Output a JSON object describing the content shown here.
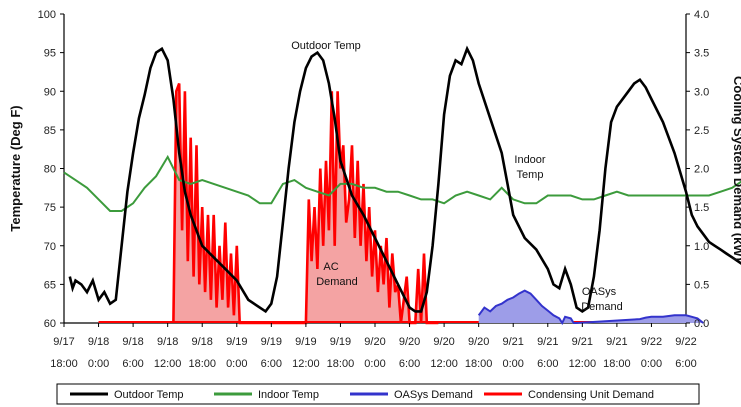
{
  "chart_data": {
    "type": "line",
    "ylabel_left": "Temperature (Deg F)",
    "ylabel_right": "Cooling System Demand (kW)",
    "ylim_left": [
      60,
      100
    ],
    "ylim_right": [
      0,
      4.0
    ],
    "y_ticks_left": [
      "60",
      "65",
      "70",
      "75",
      "80",
      "85",
      "90",
      "95",
      "100"
    ],
    "y_ticks_right": [
      "0.0",
      "0.5",
      "1.0",
      "1.5",
      "2.0",
      "2.5",
      "3.0",
      "3.5",
      "4.0"
    ],
    "x_ticks": [
      {
        "date": "9/17",
        "time": "18:00"
      },
      {
        "date": "9/18",
        "time": "0:00"
      },
      {
        "date": "9/18",
        "time": "6:00"
      },
      {
        "date": "9/18",
        "time": "12:00"
      },
      {
        "date": "9/18",
        "time": "18:00"
      },
      {
        "date": "9/19",
        "time": "0:00"
      },
      {
        "date": "9/19",
        "time": "6:00"
      },
      {
        "date": "9/19",
        "time": "12:00"
      },
      {
        "date": "9/19",
        "time": "18:00"
      },
      {
        "date": "9/20",
        "time": "0:00"
      },
      {
        "date": "9/20",
        "time": "6:00"
      },
      {
        "date": "9/20",
        "time": "12:00"
      },
      {
        "date": "9/20",
        "time": "18:00"
      },
      {
        "date": "9/21",
        "time": "0:00"
      },
      {
        "date": "9/21",
        "time": "6:00"
      },
      {
        "date": "9/21",
        "time": "12:00"
      },
      {
        "date": "9/21",
        "time": "18:00"
      },
      {
        "date": "9/22",
        "time": "0:00"
      },
      {
        "date": "9/22",
        "time": "6:00"
      }
    ],
    "grid": false,
    "legend_position": "bottom",
    "annotations": [
      "Outdoor Temp",
      "Indoor Temp",
      "AC Demand",
      "OASys Demand"
    ],
    "series": [
      {
        "name": "Outdoor Temp",
        "axis": "left",
        "color": "#000000",
        "x_hours": [
          1,
          1.5,
          2,
          3,
          4,
          5,
          6,
          7,
          8,
          9,
          10,
          11,
          12,
          13,
          14,
          15,
          16,
          17,
          18,
          19,
          20,
          21,
          22,
          24,
          26,
          28,
          30,
          32,
          34,
          35,
          36,
          37,
          38,
          39,
          40,
          41,
          42,
          43,
          44,
          45,
          46,
          47,
          48,
          50,
          52,
          54,
          56,
          58,
          60,
          61,
          62,
          63,
          64,
          65,
          66,
          67,
          68,
          69,
          70,
          71,
          72,
          74,
          76,
          77,
          78,
          80,
          82,
          84,
          85,
          86,
          87,
          88,
          89,
          90,
          91,
          92,
          93,
          94,
          95,
          96,
          98,
          99,
          100,
          101,
          102,
          104,
          106,
          108,
          109,
          110,
          111,
          112,
          113,
          114,
          115,
          116,
          117,
          118,
          119,
          120,
          121,
          122,
          123
        ],
        "values": [
          66,
          64.5,
          65.5,
          65,
          64,
          65.5,
          63,
          64,
          62.5,
          63,
          70,
          77,
          82,
          86.5,
          89.5,
          93,
          95,
          95.5,
          94,
          89,
          82,
          77,
          74,
          70,
          68.5,
          67,
          65.5,
          63,
          62,
          61.5,
          62.5,
          66,
          73,
          80,
          86,
          90,
          93,
          94.5,
          95,
          94,
          91,
          86.5,
          81,
          76.5,
          74,
          71,
          68,
          65,
          62,
          61.5,
          61.5,
          64,
          70,
          78,
          87,
          92,
          94,
          93.5,
          95.5,
          94,
          91,
          86.5,
          82,
          78,
          74,
          71,
          69.5,
          67,
          65,
          64.5,
          67,
          65,
          62,
          61.5,
          62,
          66,
          72,
          80,
          86,
          88,
          90,
          91,
          91.5,
          90.5,
          89,
          86,
          82,
          77,
          74,
          72.5,
          71.5,
          70.5,
          70,
          69.5,
          69,
          68.5,
          68,
          67.5,
          67,
          67,
          71.5,
          71.5,
          71
        ]
      },
      {
        "name": "Indoor Temp",
        "axis": "left",
        "color": "#3c9b3c",
        "x_hours": [
          0,
          2,
          4,
          6,
          8,
          10,
          12,
          14,
          16,
          18,
          20,
          22,
          24,
          26,
          28,
          30,
          32,
          34,
          36,
          38,
          40,
          42,
          44,
          46,
          48,
          50,
          52,
          54,
          56,
          58,
          60,
          62,
          64,
          66,
          68,
          70,
          72,
          74,
          76,
          78,
          80,
          82,
          84,
          86,
          88,
          90,
          92,
          94,
          96,
          98,
          100,
          102,
          104,
          106,
          108,
          110,
          112,
          114,
          116,
          118,
          120,
          122,
          124
        ],
        "values": [
          79.5,
          78.5,
          77.5,
          76,
          74.5,
          74.5,
          75.5,
          77.5,
          79,
          81.5,
          78.5,
          78,
          78.5,
          78,
          77.5,
          77,
          76.5,
          75.5,
          75.5,
          78,
          78.5,
          77.5,
          77,
          76.5,
          78,
          78,
          77.5,
          77.5,
          77,
          77,
          76.5,
          76,
          76,
          75.5,
          76.5,
          77,
          76.5,
          76,
          77.5,
          76,
          75.5,
          75.5,
          76.5,
          76.5,
          76.5,
          76,
          76,
          76.5,
          77,
          76.5,
          76.5,
          76.5,
          76.5,
          76.5,
          76.5,
          76.5,
          76.5,
          77,
          77.5,
          78.5,
          78.5,
          78.5,
          78.5
        ]
      },
      {
        "name": "OASys Demand",
        "axis": "right",
        "color": "#3333cc",
        "x_hours": [
          72,
          73,
          74,
          75,
          76,
          77,
          78,
          79,
          80,
          81,
          82,
          83,
          84,
          85,
          86,
          86.5,
          87,
          88,
          88.5,
          89,
          100,
          101,
          102,
          104,
          106,
          108,
          109,
          110,
          111
        ],
        "values": [
          0.1,
          0.2,
          0.15,
          0.22,
          0.25,
          0.3,
          0.33,
          0.38,
          0.42,
          0.38,
          0.3,
          0.22,
          0.16,
          0.1,
          0.06,
          0.0,
          0.08,
          0.06,
          0.0,
          0.0,
          0.05,
          0.07,
          0.08,
          0.08,
          0.1,
          0.1,
          0.08,
          0.06,
          0.0
        ]
      },
      {
        "name": "Condensing Unit Demand",
        "axis": "right",
        "color": "#ff0000",
        "x_hours": [
          19,
          19.5,
          20,
          20.5,
          21,
          21.5,
          22,
          22.5,
          23,
          23.5,
          24,
          24.5,
          25,
          25.5,
          26,
          26.5,
          27,
          27.5,
          28,
          28.5,
          29,
          29.5,
          30,
          30.5,
          31,
          31.5,
          32,
          42,
          42.5,
          43,
          43.5,
          44,
          44.5,
          45,
          45.5,
          46,
          46.5,
          47,
          47.5,
          48,
          48.5,
          49,
          49.5,
          50,
          50.5,
          51,
          51.5,
          52,
          52.5,
          53,
          53.5,
          54,
          54.5,
          55,
          55.5,
          56,
          56.5,
          57,
          57.5,
          58,
          58.5,
          59,
          59.5,
          60,
          60.5,
          61,
          61.5,
          62,
          62.5,
          63,
          63.5,
          64,
          64.5,
          65
        ],
        "values": [
          0.0,
          3.0,
          3.1,
          1.2,
          3.0,
          0.8,
          2.4,
          0.6,
          2.3,
          0.5,
          1.5,
          0.4,
          1.4,
          0.3,
          1.4,
          0.2,
          1.0,
          0.3,
          1.3,
          0.2,
          0.9,
          0.1,
          1.0,
          0.0,
          0.0,
          0.0,
          0.0,
          0.0,
          1.6,
          0.8,
          1.5,
          0.7,
          2.0,
          1.0,
          2.1,
          1.2,
          3.0,
          1.0,
          3.0,
          2.0,
          2.3,
          1.3,
          1.6,
          2.3,
          1.1,
          2.1,
          1.0,
          1.8,
          0.8,
          1.5,
          0.6,
          1.2,
          0.4,
          1.0,
          0.5,
          1.1,
          0.2,
          0.9,
          0.4,
          0.5,
          0.0,
          0.3,
          0.6,
          0.0,
          0.0,
          0.0,
          0.7,
          0.0,
          0.9,
          0.0,
          0.0,
          0.0,
          0.0,
          0.0
        ]
      }
    ]
  }
}
